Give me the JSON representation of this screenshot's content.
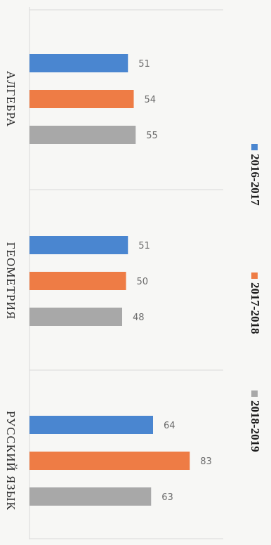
{
  "chart_data": {
    "type": "bar",
    "orientation": "horizontal",
    "categories": [
      "АЛГЕБРА",
      "ГЕОМЕТРИЯ",
      "РУССКИЙ ЯЗЫК"
    ],
    "series": [
      {
        "name": "2016-2017",
        "values": [
          51,
          51,
          64
        ],
        "color": "#4a86d0"
      },
      {
        "name": "2017-2018",
        "values": [
          54,
          50,
          83
        ],
        "color": "#ee7c45"
      },
      {
        "name": "2018-2019",
        "values": [
          55,
          48,
          63
        ],
        "color": "#a8a8a8"
      }
    ],
    "xlim": [
      0,
      100
    ],
    "legend_position": "right",
    "data_labels": true,
    "grid": true
  }
}
